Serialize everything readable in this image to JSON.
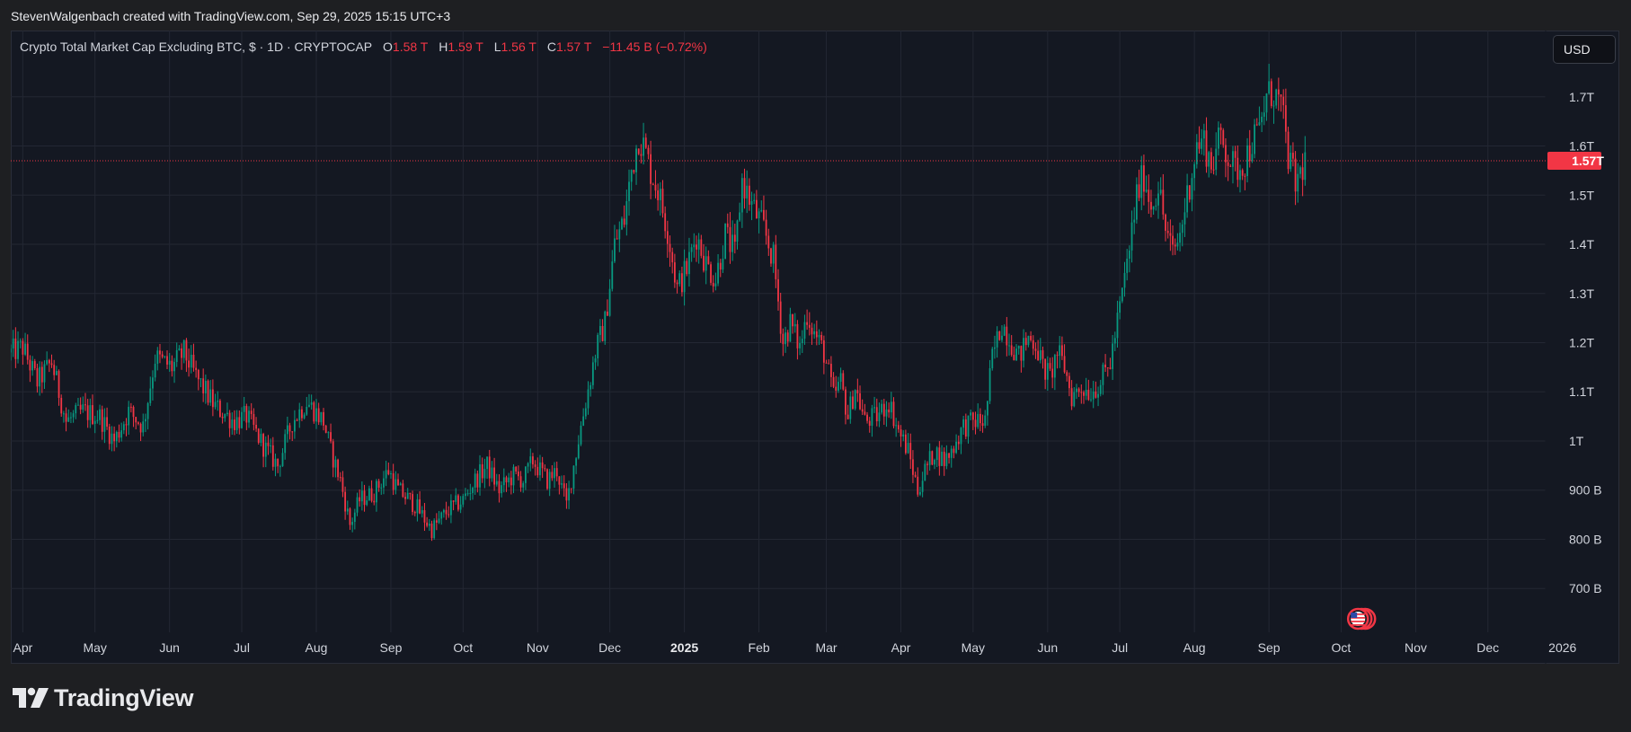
{
  "caption": "StevenWalgenbach created with TradingView.com, Sep 29, 2025 15:15 UTC+3",
  "legend": {
    "title": "Crypto Total Market Cap Excluding BTC, $ · 1D · CRYPTOCAP",
    "o_label": "O",
    "o": "1.58 T",
    "h_label": "H",
    "h": "1.59 T",
    "l_label": "L",
    "l": "1.56 T",
    "c_label": "C",
    "c": "1.57 T",
    "change": "−11.45 B (−0.72%)"
  },
  "currency_button": "USD",
  "footer_brand": "TradingView",
  "events_icon": "us-flag-economic-events-icon",
  "colors": {
    "up": "#089981",
    "down": "#f23645",
    "background": "#141822",
    "grid": "#232733",
    "text": "#d1d4dc"
  },
  "chart_data": {
    "type": "candlestick",
    "symbol": "CRYPTOCAP",
    "interval": "1D",
    "y_unit": "USD",
    "ylim": [
      620000000000,
      1780000000000
    ],
    "y_ticks": [
      {
        "value": 700000000000,
        "label": "700 B"
      },
      {
        "value": 800000000000,
        "label": "800 B"
      },
      {
        "value": 900000000000,
        "label": "900 B"
      },
      {
        "value": 1000000000000,
        "label": "1T"
      },
      {
        "value": 1100000000000,
        "label": "1.1T"
      },
      {
        "value": 1200000000000,
        "label": "1.2T"
      },
      {
        "value": 1300000000000,
        "label": "1.3T"
      },
      {
        "value": 1400000000000,
        "label": "1.4T"
      },
      {
        "value": 1500000000000,
        "label": "1.5T"
      },
      {
        "value": 1600000000000,
        "label": "1.6T"
      },
      {
        "value": 1700000000000,
        "label": "1.7T"
      }
    ],
    "x_ticks": [
      "Apr",
      "May",
      "Jun",
      "Jul",
      "Aug",
      "Sep",
      "Oct",
      "Nov",
      "Dec",
      "2025",
      "Feb",
      "Mar",
      "Apr",
      "May",
      "Jun",
      "Jul",
      "Aug",
      "Sep",
      "Oct",
      "Nov",
      "Dec",
      "2026"
    ],
    "x_tick_bold": [
      false,
      false,
      false,
      false,
      false,
      false,
      false,
      false,
      false,
      true,
      false,
      false,
      false,
      false,
      false,
      false,
      false,
      false,
      false,
      false,
      false,
      false
    ],
    "x_range_days": [
      -5,
      633
    ],
    "last_price": {
      "value": 1570000000000,
      "label": "1.57T"
    },
    "anchors_days_value_billions": [
      [
        -5,
        1180
      ],
      [
        0,
        1190
      ],
      [
        6,
        1120
      ],
      [
        12,
        1160
      ],
      [
        18,
        1040
      ],
      [
        25,
        1060
      ],
      [
        32,
        1050
      ],
      [
        38,
        1000
      ],
      [
        44,
        1060
      ],
      [
        50,
        1030
      ],
      [
        55,
        1170
      ],
      [
        62,
        1150
      ],
      [
        67,
        1180
      ],
      [
        72,
        1130
      ],
      [
        80,
        1070
      ],
      [
        88,
        1040
      ],
      [
        93,
        1050
      ],
      [
        100,
        990
      ],
      [
        106,
        950
      ],
      [
        112,
        1040
      ],
      [
        118,
        1080
      ],
      [
        125,
        1040
      ],
      [
        128,
        980
      ],
      [
        132,
        920
      ],
      [
        136,
        830
      ],
      [
        140,
        880
      ],
      [
        146,
        895
      ],
      [
        152,
        940
      ],
      [
        156,
        900
      ],
      [
        163,
        870
      ],
      [
        170,
        820
      ],
      [
        177,
        860
      ],
      [
        183,
        880
      ],
      [
        188,
        920
      ],
      [
        193,
        950
      ],
      [
        198,
        900
      ],
      [
        204,
        930
      ],
      [
        208,
        920
      ],
      [
        212,
        960
      ],
      [
        218,
        920
      ],
      [
        222,
        940
      ],
      [
        226,
        870
      ],
      [
        232,
        1030
      ],
      [
        238,
        1180
      ],
      [
        242,
        1240
      ],
      [
        246,
        1400
      ],
      [
        250,
        1450
      ],
      [
        253,
        1550
      ],
      [
        256,
        1620
      ],
      [
        258,
        1600
      ],
      [
        261,
        1550
      ],
      [
        264,
        1510
      ],
      [
        268,
        1430
      ],
      [
        272,
        1310
      ],
      [
        276,
        1350
      ],
      [
        280,
        1420
      ],
      [
        284,
        1360
      ],
      [
        288,
        1330
      ],
      [
        292,
        1420
      ],
      [
        296,
        1380
      ],
      [
        299,
        1530
      ],
      [
        303,
        1480
      ],
      [
        308,
        1430
      ],
      [
        312,
        1370
      ],
      [
        316,
        1200
      ],
      [
        319,
        1240
      ],
      [
        323,
        1190
      ],
      [
        326,
        1260
      ],
      [
        329,
        1220
      ],
      [
        333,
        1180
      ],
      [
        337,
        1090
      ],
      [
        340,
        1120
      ],
      [
        343,
        1050
      ],
      [
        346,
        1110
      ],
      [
        350,
        1040
      ],
      [
        355,
        1050
      ],
      [
        360,
        1080
      ],
      [
        364,
        1020
      ],
      [
        368,
        980
      ],
      [
        372,
        900
      ],
      [
        375,
        940
      ],
      [
        379,
        980
      ],
      [
        383,
        960
      ],
      [
        386,
        980
      ],
      [
        391,
        1030
      ],
      [
        396,
        1040
      ],
      [
        400,
        1040
      ],
      [
        403,
        1170
      ],
      [
        407,
        1240
      ],
      [
        411,
        1200
      ],
      [
        414,
        1170
      ],
      [
        418,
        1210
      ],
      [
        421,
        1200
      ],
      [
        424,
        1150
      ],
      [
        427,
        1130
      ],
      [
        430,
        1180
      ],
      [
        433,
        1150
      ],
      [
        436,
        1090
      ],
      [
        440,
        1110
      ],
      [
        444,
        1100
      ],
      [
        448,
        1120
      ],
      [
        452,
        1160
      ],
      [
        456,
        1270
      ],
      [
        460,
        1390
      ],
      [
        463,
        1500
      ],
      [
        466,
        1540
      ],
      [
        469,
        1480
      ],
      [
        472,
        1520
      ],
      [
        475,
        1430
      ],
      [
        478,
        1380
      ],
      [
        481,
        1420
      ],
      [
        484,
        1500
      ],
      [
        488,
        1600
      ],
      [
        491,
        1610
      ],
      [
        494,
        1560
      ],
      [
        498,
        1620
      ],
      [
        501,
        1580
      ],
      [
        504,
        1550
      ],
      [
        508,
        1570
      ],
      [
        511,
        1610
      ],
      [
        514,
        1630
      ],
      [
        517,
        1700
      ],
      [
        520,
        1710
      ],
      [
        523,
        1680
      ],
      [
        526,
        1580
      ],
      [
        529,
        1520
      ],
      [
        533,
        1570
      ]
    ],
    "grid": true
  }
}
